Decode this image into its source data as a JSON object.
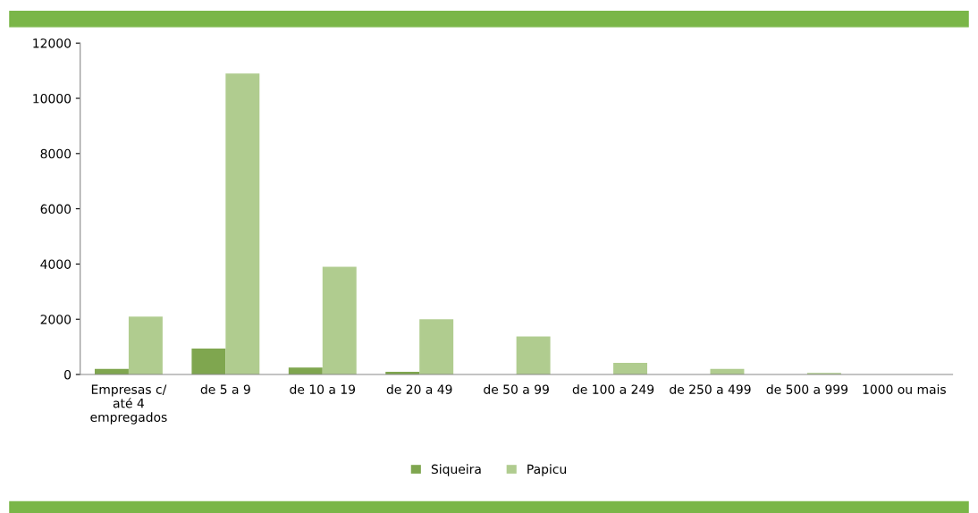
{
  "chart_data": {
    "type": "bar",
    "categories": [
      "Empresas c/\naté 4\nempregados",
      "de 5 a 9",
      "de 10 a 19",
      "de 20 a 49",
      "de 50 a 99",
      "de 100 a 249",
      "de 250 a 499",
      "de 500 a 999",
      "1000 ou mais"
    ],
    "series": [
      {
        "name": "Siqueira",
        "color": "#7fa64f",
        "values": [
          200,
          940,
          250,
          100,
          0,
          0,
          0,
          0,
          0
        ]
      },
      {
        "name": "Papicu",
        "color": "#b0cc8f",
        "values": [
          2100,
          10900,
          3900,
          2000,
          1380,
          420,
          200,
          60,
          0
        ]
      }
    ],
    "ylim": [
      0,
      12000
    ],
    "yticks": [
      0,
      2000,
      4000,
      6000,
      8000,
      10000,
      12000
    ],
    "grid": false,
    "legend": "bottom"
  }
}
